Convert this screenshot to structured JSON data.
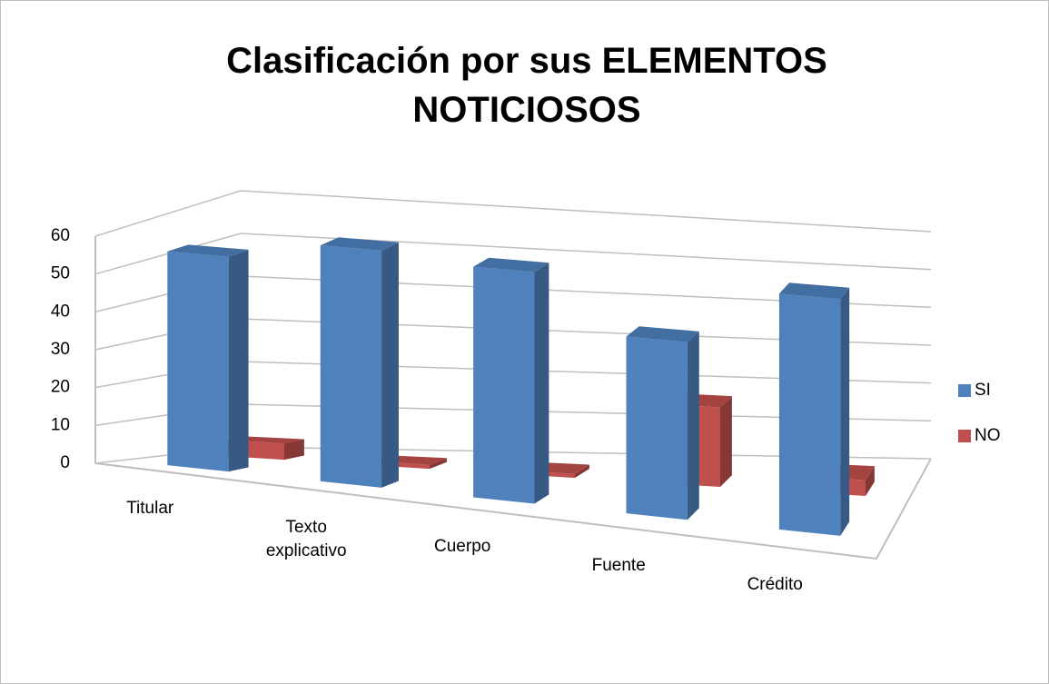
{
  "chart_data": {
    "type": "bar3d",
    "title": "Clasificación por sus ELEMENTOS NOTICIOSOS",
    "categories": [
      "Titular",
      "Texto explicativo",
      "Cuerpo",
      "Fuente",
      "Crédito"
    ],
    "series": [
      {
        "name": "SI",
        "color": "#4f81bd",
        "values": [
          55,
          60,
          58,
          44,
          58
        ]
      },
      {
        "name": "NO",
        "color": "#c0504d",
        "values": [
          4,
          1,
          1,
          20,
          4
        ]
      }
    ],
    "ylim": [
      0,
      60
    ],
    "yticks": [
      0,
      10,
      20,
      30,
      40,
      50,
      60
    ],
    "grid": true,
    "legend": "right"
  }
}
